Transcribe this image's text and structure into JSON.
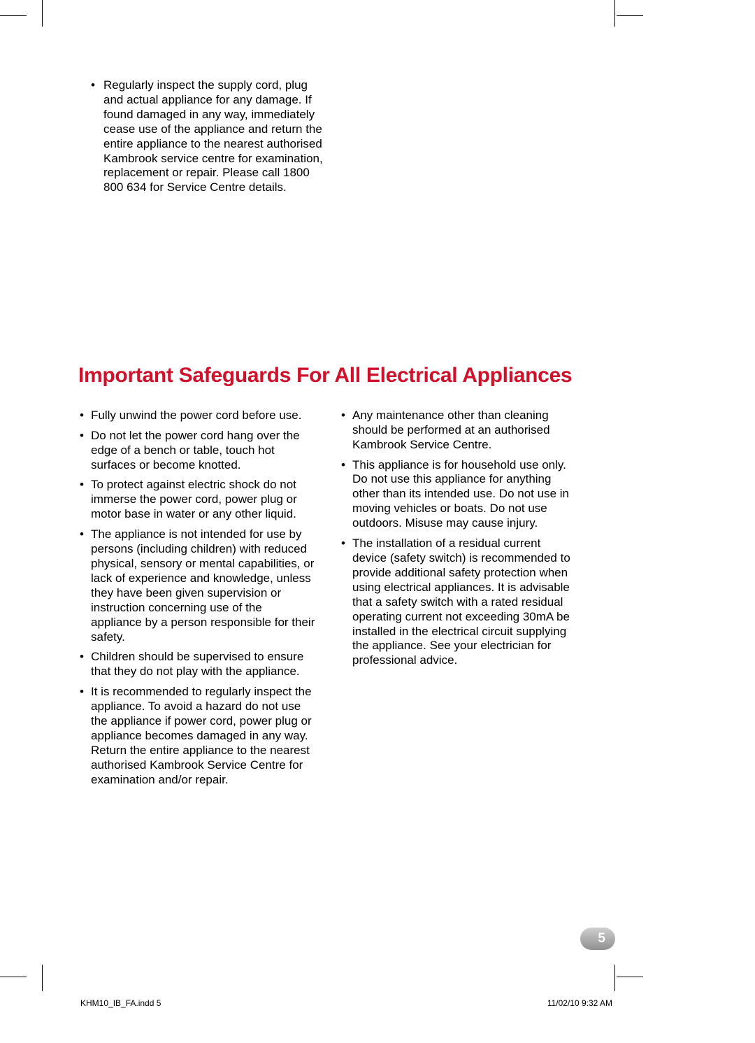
{
  "colors": {
    "heading": "#d0112b",
    "text": "#000000",
    "page_bg": "#ffffff",
    "badge_gradient_start": "#cfcfcf",
    "badge_gradient_end": "#909090",
    "badge_text": "#ffffff"
  },
  "typography": {
    "body_fontsize": 17,
    "heading_fontsize": 30,
    "footer_fontsize": 12,
    "line_height": 1.23
  },
  "top": {
    "bullet": "Regularly inspect the supply cord, plug and actual appliance for any damage. If found damaged in any way, immediately cease use of the appliance and return the entire appliance to the nearest authorised Kambrook service centre for examination, replacement or repair. Please call 1800 800 634 for Service Centre details."
  },
  "heading": "Important Safeguards For All Electrical Appliances",
  "left_col": [
    "Fully unwind the power cord before use.",
    "Do not let the power cord hang over the edge of a bench or table, touch hot surfaces or become knotted.",
    "To protect against electric shock do not immerse the power cord, power plug or motor base in water or any other liquid.",
    "The appliance is not intended for use by persons (including children) with reduced physical, sensory or mental capabilities, or lack of experience and knowledge, unless they have been given supervision or instruction concerning use of the appliance by a person responsible for their safety.",
    "Children should be supervised to ensure that they do not play with the appliance.",
    "It is recommended to regularly inspect the appliance. To avoid a hazard do not use the appliance if power cord, power plug or appliance becomes damaged in any way. Return the entire appliance to the nearest authorised Kambrook Service Centre for examination and/or repair."
  ],
  "right_col": [
    "Any maintenance other than cleaning should be performed at an authorised Kambrook Service Centre.",
    "This appliance is for household use only. Do not use this appliance for anything other than its intended use. Do not use in moving vehicles or boats. Do not use outdoors. Misuse may cause injury.",
    "The installation of a residual current device (safety switch) is recommended to provide additional safety protection when using electrical appliances. It is advisable that a safety switch with a rated residual operating current not exceeding 30mA be installed in the electrical circuit supplying the appliance. See your electrician for professional advice."
  ],
  "page_number": "5",
  "footer": {
    "left": "KHM10_IB_FA.indd   5",
    "right": "11/02/10   9:32 AM"
  }
}
